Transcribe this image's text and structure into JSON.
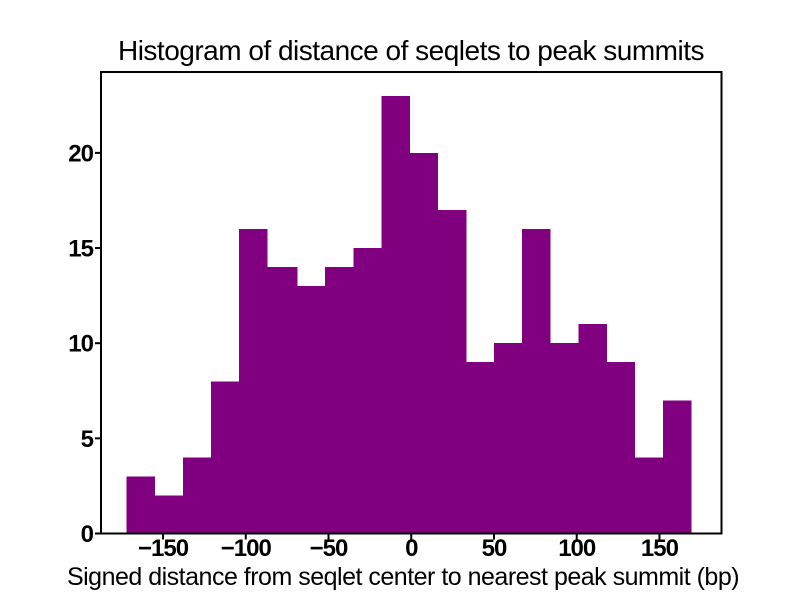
{
  "figure": {
    "background_color": "#ffffff",
    "text_color": "#000000"
  },
  "chart_data": {
    "type": "bar",
    "subtype": "histogram",
    "title": "Histogram of distance of seqlets to peak summits",
    "xlabel": "Signed distance from seqlet center to nearest peak summit (bp)",
    "ylabel": "",
    "bar_color": "#800080",
    "axis_color": "#000000",
    "grid": false,
    "legend": null,
    "bin_edges": [
      -172,
      -155,
      -138,
      -121,
      -104,
      -87,
      -69,
      -52,
      -35,
      -18,
      -1,
      16,
      33,
      50,
      67,
      84,
      101,
      118,
      135,
      152,
      169
    ],
    "counts": [
      3,
      2,
      4,
      8,
      16,
      14,
      13,
      14,
      15,
      23,
      20,
      17,
      9,
      10,
      16,
      10,
      11,
      9,
      4,
      7
    ],
    "total_count": 225,
    "x_ticks": [
      -150,
      -100,
      -50,
      0,
      50,
      100,
      150
    ],
    "x_tick_labels": [
      "−150",
      "−100",
      "−50",
      "0",
      "50",
      "100",
      "150"
    ],
    "y_ticks": [
      0,
      5,
      10,
      15,
      20
    ],
    "y_tick_labels": [
      "0",
      "5",
      "10",
      "15",
      "20"
    ],
    "xlim": [
      -187.5,
      187.5
    ],
    "ylim": [
      0,
      24.25
    ]
  }
}
